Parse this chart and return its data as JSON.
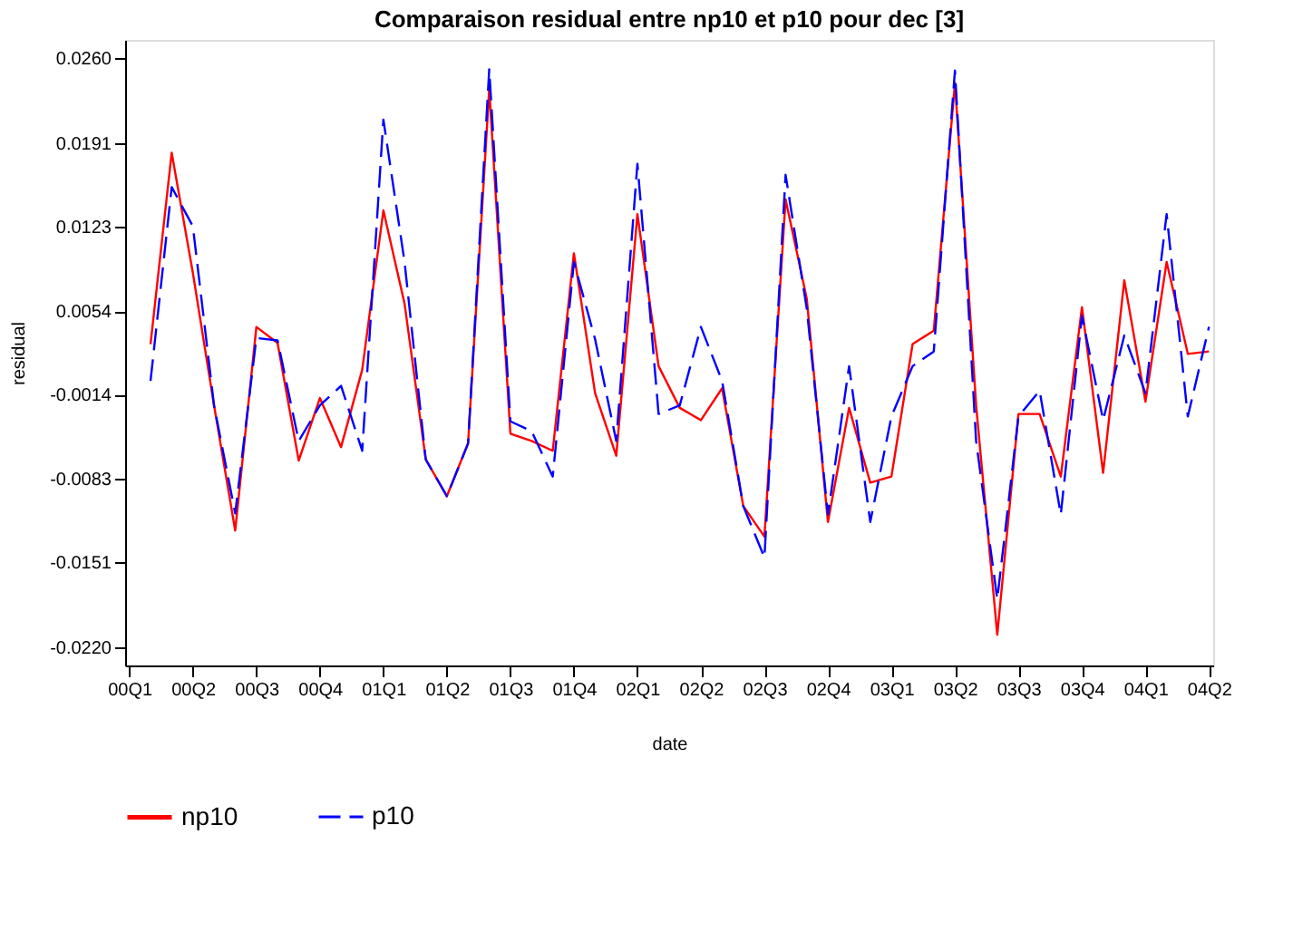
{
  "chart_data": {
    "type": "line",
    "title": "Comparaison residual entre np10 et p10 pour dec [3]",
    "xlabel": "date",
    "ylabel": "residual",
    "categories": [
      "00Q1",
      null,
      null,
      "00Q2",
      null,
      null,
      "00Q3",
      null,
      null,
      "00Q4",
      null,
      null,
      "01Q1",
      null,
      null,
      "01Q2",
      null,
      null,
      "01Q3",
      null,
      null,
      "01Q4",
      null,
      null,
      "02Q1",
      null,
      null,
      "02Q2",
      null,
      null,
      "02Q3",
      null,
      null,
      "02Q4",
      null,
      null,
      "03Q1",
      null,
      null,
      "03Q2",
      null,
      null,
      "03Q3",
      null,
      null,
      "03Q4",
      null,
      null,
      "04Q1",
      null,
      null,
      "04Q2"
    ],
    "series": [
      {
        "name": "np10",
        "color": "#ff0000",
        "line_style": "solid",
        "values": [
          null,
          0.0027,
          0.0183,
          0.0085,
          -0.0023,
          -0.0125,
          0.0041,
          0.0028,
          -0.0068,
          -0.0017,
          -0.0057,
          0.0006,
          0.0136,
          0.006,
          -0.0067,
          -0.0097,
          -0.0054,
          0.0235,
          -0.0046,
          -0.0052,
          -0.006,
          0.0101,
          -0.0013,
          -0.0064,
          0.0133,
          0.0009,
          -0.0025,
          -0.0035,
          -0.0009,
          -0.0105,
          -0.013,
          0.0145,
          0.0064,
          -0.0118,
          -0.0025,
          -0.0086,
          -0.0081,
          0.0027,
          0.0038,
          0.024,
          -0.0023,
          -0.021,
          -0.003,
          -0.003,
          -0.0081,
          0.0057,
          -0.0078,
          0.0079,
          -0.002,
          0.0094,
          0.0019,
          0.0021
        ]
      },
      {
        "name": "p10",
        "color": "#0000ff",
        "line_style": "dashed",
        "values": [
          null,
          -0.0003,
          0.0155,
          0.0123,
          -0.0023,
          -0.0111,
          0.0032,
          0.003,
          -0.0052,
          -0.0023,
          -0.0007,
          -0.006,
          0.021,
          0.0094,
          -0.0067,
          -0.0097,
          -0.0054,
          0.0251,
          -0.0036,
          -0.0044,
          -0.0081,
          0.0094,
          0.0031,
          -0.0052,
          0.0174,
          -0.003,
          -0.0023,
          0.0041,
          -0.0003,
          -0.0105,
          -0.0147,
          0.0165,
          0.0056,
          -0.0112,
          0.0009,
          -0.0118,
          -0.0032,
          0.0009,
          0.0021,
          0.025,
          -0.0052,
          -0.0181,
          -0.0032,
          -0.0011,
          -0.0112,
          0.005,
          -0.0035,
          0.0034,
          -0.0013,
          0.0133,
          -0.0032,
          0.0041
        ]
      }
    ],
    "ylim": [
      -0.0235,
      0.0275
    ],
    "yticks": [
      {
        "value": 0.026,
        "label": "0.0260"
      },
      {
        "value": 0.0191,
        "label": "0.0191"
      },
      {
        "value": 0.0123,
        "label": "0.0123"
      },
      {
        "value": 0.0054,
        "label": "0.0054"
      },
      {
        "value": -0.0014,
        "label": "-0.0014"
      },
      {
        "value": -0.0083,
        "label": "-0.0083"
      },
      {
        "value": -0.0151,
        "label": "-0.0151"
      },
      {
        "value": -0.022,
        "label": "-0.0220"
      }
    ],
    "grid": false,
    "legend": "bottom",
    "marker": "none"
  }
}
